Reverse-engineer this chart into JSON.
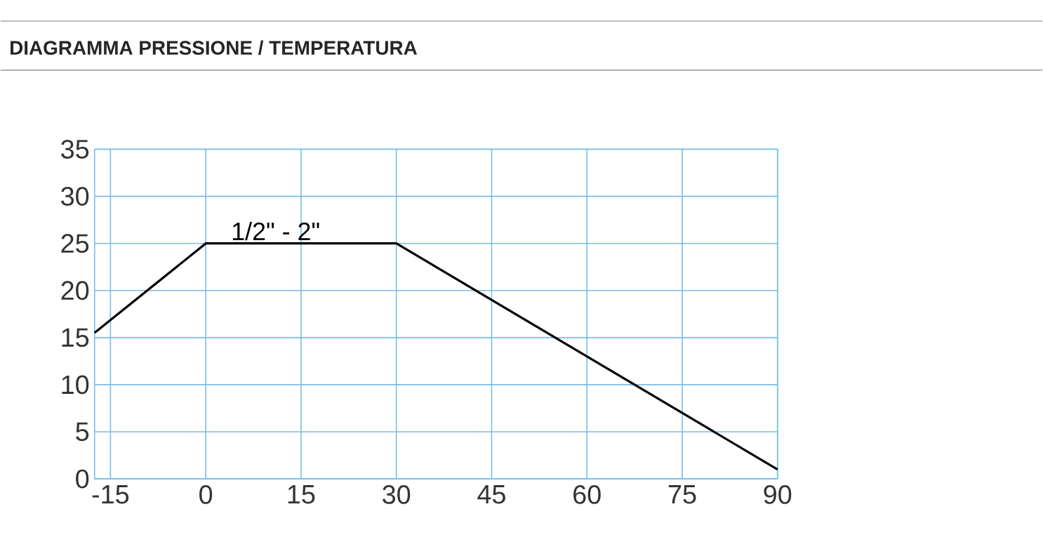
{
  "chart_data": {
    "type": "line",
    "title": "DIAGRAMMA PRESSIONE / TEMPERATURA",
    "x": [
      -17.5,
      0,
      30,
      90
    ],
    "series": [
      {
        "name": "1/2\" - 2\"",
        "color": "#000000",
        "values": [
          15.5,
          25,
          25,
          1
        ]
      }
    ],
    "xlim": [
      -17.5,
      90
    ],
    "ylim": [
      0,
      35
    ],
    "xticks": [
      -15,
      0,
      15,
      30,
      45,
      60,
      75,
      90
    ],
    "yticks": [
      0,
      5,
      10,
      15,
      20,
      25,
      30,
      35
    ],
    "grid": true,
    "legend": false,
    "marker": "none",
    "line_style": "solid"
  }
}
